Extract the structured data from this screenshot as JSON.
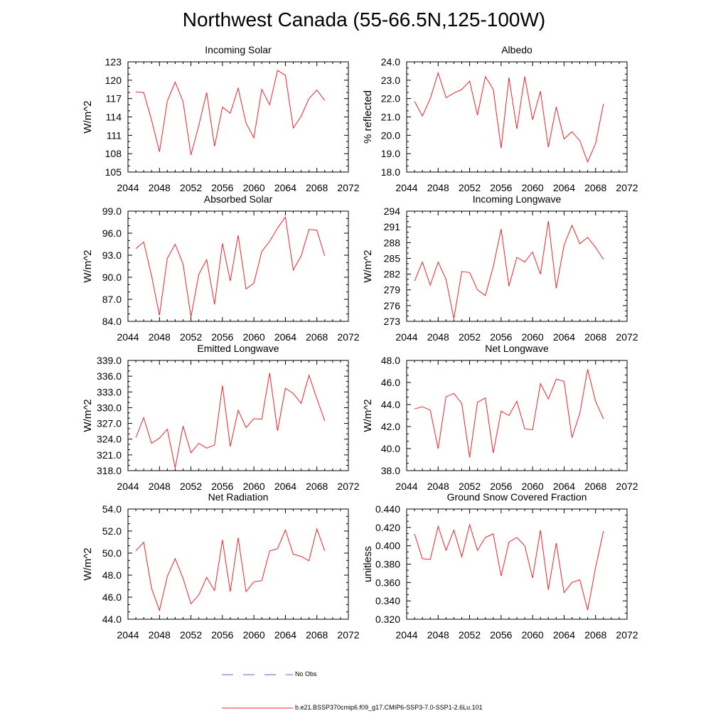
{
  "title": "Northwest Canada (55-66.5N,125-100W)",
  "legend": [
    {
      "label": "No Obs",
      "color": "#4a6fbf",
      "dash": true
    },
    {
      "label": "b.e21.BSSP370cmip6.f09_g17.CMIP6-SSP3-7.0-SSP1-2.6Lu.101",
      "color": "#e8242a",
      "dash": false
    }
  ],
  "chart_data": [
    {
      "type": "line",
      "title": "Incoming Solar",
      "ylabel": "W/m^2",
      "xlim": [
        2044,
        2072
      ],
      "xticks": [
        "2044",
        "2048",
        "2052",
        "2056",
        "2060",
        "2064",
        "2068",
        "2072"
      ],
      "ylim": [
        105,
        123
      ],
      "yticks": [
        "105",
        "108",
        "111",
        "114",
        "117",
        "120",
        "123"
      ],
      "color": "#e8242a",
      "x": [
        2045,
        2046,
        2047,
        2048,
        2049,
        2050,
        2051,
        2052,
        2053,
        2054,
        2055,
        2056,
        2057,
        2058,
        2059,
        2060,
        2061,
        2062,
        2063,
        2064,
        2065,
        2066,
        2067,
        2068,
        2069
      ],
      "y": [
        118.1,
        118.0,
        113.5,
        108.3,
        116.6,
        119.7,
        116.5,
        107.8,
        112.6,
        118.0,
        109.2,
        115.6,
        114.6,
        118.7,
        113.0,
        110.6,
        118.5,
        116.0,
        121.6,
        120.8,
        112.2,
        114.1,
        117.0,
        118.4,
        116.7
      ]
    },
    {
      "type": "line",
      "title": "Albedo",
      "ylabel": "% reflected",
      "xlim": [
        2044,
        2072
      ],
      "xticks": [
        "2044",
        "2048",
        "2052",
        "2056",
        "2060",
        "2064",
        "2068",
        "2072"
      ],
      "ylim": [
        18.0,
        24.0
      ],
      "yticks": [
        "18.0",
        "19.0",
        "20.0",
        "21.0",
        "22.0",
        "23.0",
        "24.0"
      ],
      "color": "#e8242a",
      "x": [
        2045,
        2046,
        2047,
        2048,
        2049,
        2050,
        2051,
        2052,
        2053,
        2054,
        2055,
        2056,
        2057,
        2058,
        2059,
        2060,
        2061,
        2062,
        2063,
        2064,
        2065,
        2066,
        2067,
        2068,
        2069
      ],
      "y": [
        21.85,
        21.05,
        22.0,
        23.4,
        22.05,
        22.3,
        22.5,
        22.95,
        21.1,
        23.2,
        22.5,
        19.3,
        23.15,
        20.35,
        23.2,
        20.85,
        22.4,
        19.35,
        21.55,
        19.8,
        20.2,
        19.7,
        18.55,
        19.55,
        21.7
      ]
    },
    {
      "type": "line",
      "title": "Absorbed Solar",
      "ylabel": "W/m^2",
      "xlim": [
        2044,
        2072
      ],
      "xticks": [
        "2044",
        "2048",
        "2052",
        "2056",
        "2060",
        "2064",
        "2068",
        "2072"
      ],
      "ylim": [
        84.0,
        99.0
      ],
      "yticks": [
        "84.0",
        "87.0",
        "90.0",
        "93.0",
        "96.0",
        "99.0"
      ],
      "color": "#e8242a",
      "x": [
        2045,
        2046,
        2047,
        2048,
        2049,
        2050,
        2051,
        2052,
        2053,
        2054,
        2055,
        2056,
        2057,
        2058,
        2059,
        2060,
        2061,
        2062,
        2063,
        2064,
        2065,
        2066,
        2067,
        2068,
        2069
      ],
      "y": [
        93.9,
        94.8,
        90.2,
        84.8,
        92.6,
        94.5,
        91.8,
        84.6,
        90.4,
        92.4,
        86.3,
        94.6,
        89.5,
        95.7,
        88.4,
        89.2,
        93.5,
        94.9,
        96.7,
        98.2,
        91.0,
        92.9,
        96.5,
        96.4,
        92.9
      ]
    },
    {
      "type": "line",
      "title": "Incoming Longwave",
      "ylabel": "W/m^2",
      "xlim": [
        2044,
        2072
      ],
      "xticks": [
        "2044",
        "2048",
        "2052",
        "2056",
        "2060",
        "2064",
        "2068",
        "2072"
      ],
      "ylim": [
        273,
        294
      ],
      "yticks": [
        "273",
        "276",
        "279",
        "282",
        "285",
        "288",
        "291",
        "294"
      ],
      "color": "#e8242a",
      "x": [
        2045,
        2046,
        2047,
        2048,
        2049,
        2050,
        2051,
        2052,
        2053,
        2054,
        2055,
        2056,
        2057,
        2058,
        2059,
        2060,
        2061,
        2062,
        2063,
        2064,
        2065,
        2066,
        2067,
        2068,
        2069
      ],
      "y": [
        280.7,
        284.3,
        279.9,
        284.3,
        281.0,
        273.5,
        282.5,
        282.3,
        279.0,
        277.9,
        283.4,
        290.6,
        279.7,
        285.2,
        284.3,
        286.2,
        282.0,
        292.1,
        279.3,
        287.5,
        291.3,
        287.8,
        289.0,
        287.1,
        284.8
      ]
    },
    {
      "type": "line",
      "title": "Emitted Longwave",
      "ylabel": "W/m^2",
      "xlim": [
        2044,
        2072
      ],
      "xticks": [
        "2044",
        "2048",
        "2052",
        "2056",
        "2060",
        "2064",
        "2068",
        "2072"
      ],
      "ylim": [
        318.0,
        339.0
      ],
      "yticks": [
        "318.0",
        "321.0",
        "324.0",
        "327.0",
        "330.0",
        "333.0",
        "336.0",
        "339.0"
      ],
      "color": "#e8242a",
      "x": [
        2045,
        2046,
        2047,
        2048,
        2049,
        2050,
        2051,
        2052,
        2053,
        2054,
        2055,
        2056,
        2057,
        2058,
        2059,
        2060,
        2061,
        2062,
        2063,
        2064,
        2065,
        2066,
        2067,
        2068,
        2069
      ],
      "y": [
        324.3,
        328.1,
        323.2,
        324.2,
        325.9,
        318.5,
        326.5,
        321.4,
        323.2,
        322.3,
        322.9,
        334.2,
        322.6,
        329.5,
        326.2,
        327.9,
        327.8,
        336.6,
        325.6,
        333.7,
        332.7,
        330.8,
        336.2,
        331.7,
        327.5
      ]
    },
    {
      "type": "line",
      "title": "Net Longwave",
      "ylabel": "W/m^2",
      "xlim": [
        2044,
        2072
      ],
      "xticks": [
        "2044",
        "2048",
        "2052",
        "2056",
        "2060",
        "2064",
        "2068",
        "2072"
      ],
      "ylim": [
        38.0,
        48.0
      ],
      "yticks": [
        "38.0",
        "40.0",
        "42.0",
        "44.0",
        "46.0",
        "48.0"
      ],
      "color": "#e8242a",
      "x": [
        2045,
        2046,
        2047,
        2048,
        2049,
        2050,
        2051,
        2052,
        2053,
        2054,
        2055,
        2056,
        2057,
        2058,
        2059,
        2060,
        2061,
        2062,
        2063,
        2064,
        2065,
        2066,
        2067,
        2068,
        2069
      ],
      "y": [
        43.6,
        43.8,
        43.5,
        40.0,
        44.7,
        45.0,
        44.1,
        39.2,
        44.2,
        44.6,
        39.6,
        43.4,
        43.0,
        44.3,
        41.8,
        41.7,
        45.9,
        44.5,
        46.3,
        46.1,
        41.0,
        43.2,
        47.2,
        44.3,
        42.7
      ]
    },
    {
      "type": "line",
      "title": "Net Radiation",
      "ylabel": "W/m^2",
      "xlim": [
        2044,
        2072
      ],
      "xticks": [
        "2044",
        "2048",
        "2052",
        "2056",
        "2060",
        "2064",
        "2068",
        "2072"
      ],
      "ylim": [
        44.0,
        54.0
      ],
      "yticks": [
        "44.0",
        "46.0",
        "48.0",
        "50.0",
        "52.0",
        "54.0"
      ],
      "color": "#e8242a",
      "x": [
        2045,
        2046,
        2047,
        2048,
        2049,
        2050,
        2051,
        2052,
        2053,
        2054,
        2055,
        2056,
        2057,
        2058,
        2059,
        2060,
        2061,
        2062,
        2063,
        2064,
        2065,
        2066,
        2067,
        2068,
        2069
      ],
      "y": [
        50.2,
        51.0,
        46.8,
        44.8,
        47.9,
        49.5,
        47.7,
        45.4,
        46.2,
        47.8,
        46.6,
        51.2,
        46.5,
        51.4,
        46.5,
        47.4,
        47.5,
        50.2,
        50.4,
        52.1,
        49.9,
        49.7,
        49.3,
        52.2,
        50.2
      ]
    },
    {
      "type": "line",
      "title": "Ground Snow Covered Fraction",
      "ylabel": "unitless",
      "xlim": [
        2044,
        2072
      ],
      "xticks": [
        "2044",
        "2048",
        "2052",
        "2056",
        "2060",
        "2064",
        "2068",
        "2072"
      ],
      "ylim": [
        0.32,
        0.44
      ],
      "yticks": [
        "0.320",
        "0.340",
        "0.360",
        "0.380",
        "0.400",
        "0.420",
        "0.440"
      ],
      "color": "#e8242a",
      "x": [
        2045,
        2046,
        2047,
        2048,
        2049,
        2050,
        2051,
        2052,
        2053,
        2054,
        2055,
        2056,
        2057,
        2058,
        2059,
        2060,
        2061,
        2062,
        2063,
        2064,
        2065,
        2066,
        2067,
        2068,
        2069
      ],
      "y": [
        0.413,
        0.386,
        0.385,
        0.421,
        0.395,
        0.417,
        0.388,
        0.423,
        0.395,
        0.409,
        0.413,
        0.367,
        0.404,
        0.409,
        0.4,
        0.365,
        0.417,
        0.352,
        0.403,
        0.349,
        0.36,
        0.363,
        0.33,
        0.376,
        0.416
      ]
    }
  ]
}
